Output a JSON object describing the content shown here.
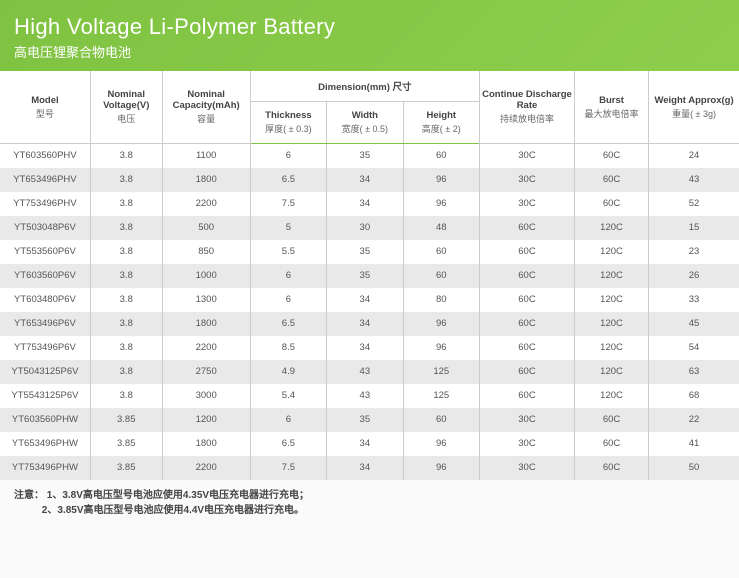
{
  "colors": {
    "header_grad_from": "#7fc241",
    "header_grad_to": "#8fce4d",
    "accent_line": "#7fc241",
    "row_alt": "#e9e9e9",
    "text": "#555",
    "background": "#fafafa"
  },
  "header": {
    "title": "High Voltage Li-Polymer Battery",
    "subtitle": "高电压锂聚合物电池"
  },
  "columns": {
    "model": {
      "label": "Model",
      "sub": "型号"
    },
    "voltage": {
      "label": "Nominal Voltage(V)",
      "sub": "电压"
    },
    "capacity": {
      "label": "Nominal Capacity(mAh)",
      "sub": "容量"
    },
    "dimension": {
      "label": "Dimension(mm) 尺寸"
    },
    "thickness": {
      "label": "Thickness",
      "sub": "厚度( ± 0.3)"
    },
    "width": {
      "label": "Width",
      "sub": "宽度( ± 0.5)"
    },
    "height": {
      "label": "Height",
      "sub": "高度( ± 2)"
    },
    "discharge": {
      "label": "Continue Discharge Rate",
      "sub": "持续放电倍率"
    },
    "burst": {
      "label": "Burst",
      "sub": "最大放电倍率"
    },
    "weight": {
      "label": "Weight Approx(g)",
      "sub": "重量( ± 3g)"
    }
  },
  "rows": [
    {
      "model": "YT603560PHV",
      "voltage": "3.8",
      "capacity": "1100",
      "thickness": "6",
      "width": "35",
      "height": "60",
      "discharge": "30C",
      "burst": "60C",
      "weight": "24"
    },
    {
      "model": "YT653496PHV",
      "voltage": "3.8",
      "capacity": "1800",
      "thickness": "6.5",
      "width": "34",
      "height": "96",
      "discharge": "30C",
      "burst": "60C",
      "weight": "43"
    },
    {
      "model": "YT753496PHV",
      "voltage": "3.8",
      "capacity": "2200",
      "thickness": "7.5",
      "width": "34",
      "height": "96",
      "discharge": "30C",
      "burst": "60C",
      "weight": "52"
    },
    {
      "model": "YT503048P6V",
      "voltage": "3.8",
      "capacity": "500",
      "thickness": "5",
      "width": "30",
      "height": "48",
      "discharge": "60C",
      "burst": "120C",
      "weight": "15"
    },
    {
      "model": "YT553560P6V",
      "voltage": "3.8",
      "capacity": "850",
      "thickness": "5.5",
      "width": "35",
      "height": "60",
      "discharge": "60C",
      "burst": "120C",
      "weight": "23"
    },
    {
      "model": "YT603560P6V",
      "voltage": "3.8",
      "capacity": "1000",
      "thickness": "6",
      "width": "35",
      "height": "60",
      "discharge": "60C",
      "burst": "120C",
      "weight": "26"
    },
    {
      "model": "YT603480P6V",
      "voltage": "3.8",
      "capacity": "1300",
      "thickness": "6",
      "width": "34",
      "height": "80",
      "discharge": "60C",
      "burst": "120C",
      "weight": "33"
    },
    {
      "model": "YT653496P6V",
      "voltage": "3.8",
      "capacity": "1800",
      "thickness": "6.5",
      "width": "34",
      "height": "96",
      "discharge": "60C",
      "burst": "120C",
      "weight": "45"
    },
    {
      "model": "YT753496P6V",
      "voltage": "3.8",
      "capacity": "2200",
      "thickness": "8.5",
      "width": "34",
      "height": "96",
      "discharge": "60C",
      "burst": "120C",
      "weight": "54"
    },
    {
      "model": "YT5043125P6V",
      "voltage": "3.8",
      "capacity": "2750",
      "thickness": "4.9",
      "width": "43",
      "height": "125",
      "discharge": "60C",
      "burst": "120C",
      "weight": "63"
    },
    {
      "model": "YT5543125P6V",
      "voltage": "3.8",
      "capacity": "3000",
      "thickness": "5.4",
      "width": "43",
      "height": "125",
      "discharge": "60C",
      "burst": "120C",
      "weight": "68"
    },
    {
      "model": "YT603560PHW",
      "voltage": "3.85",
      "capacity": "1200",
      "thickness": "6",
      "width": "35",
      "height": "60",
      "discharge": "30C",
      "burst": "60C",
      "weight": "22"
    },
    {
      "model": "YT653496PHW",
      "voltage": "3.85",
      "capacity": "1800",
      "thickness": "6.5",
      "width": "34",
      "height": "96",
      "discharge": "30C",
      "burst": "60C",
      "weight": "41"
    },
    {
      "model": "YT753496PHW",
      "voltage": "3.85",
      "capacity": "2200",
      "thickness": "7.5",
      "width": "34",
      "height": "96",
      "discharge": "30C",
      "burst": "60C",
      "weight": "50"
    }
  ],
  "notes": {
    "prefix": "注意：",
    "line1": "1、3.8V高电压型号电池应使用4.35V电压充电器进行充电；",
    "line2": "2、3.85V高电压型号电池应使用4.4V电压充电器进行充电。"
  }
}
